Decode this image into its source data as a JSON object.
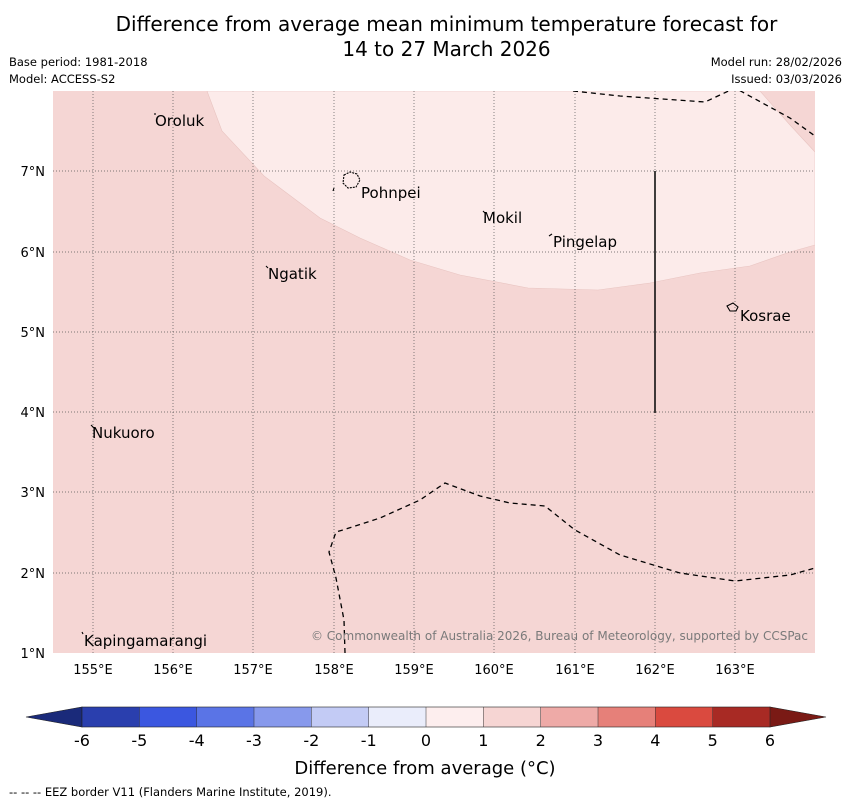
{
  "title": {
    "line1": "Difference from average mean minimum temperature forecast for",
    "line2": "14 to 27 March 2026"
  },
  "meta": {
    "base_period": "Base period: 1981-2018",
    "model": "Model: ACCESS-S2",
    "model_run": "Model run: 28/02/2026",
    "issued": "Issued: 03/03/2026"
  },
  "map": {
    "lon_range": [
      154.5,
      164.0
    ],
    "lat_range": [
      1.0,
      8.0
    ],
    "x_ticks": [
      "155°E",
      "156°E",
      "157°E",
      "158°E",
      "159°E",
      "160°E",
      "161°E",
      "162°E",
      "163°E"
    ],
    "y_ticks": [
      "7°N",
      "6°N",
      "5°N",
      "4°N",
      "3°N",
      "2°N",
      "1°N"
    ],
    "places": [
      {
        "name": "Oroluk",
        "lon": 155.75,
        "lat": 7.7
      },
      {
        "name": "Pohnpei",
        "lon": 158.3,
        "lat": 6.85
      },
      {
        "name": "Mokil",
        "lon": 159.8,
        "lat": 6.45
      },
      {
        "name": "Pingelap",
        "lon": 160.7,
        "lat": 6.2
      },
      {
        "name": "Ngatik",
        "lon": 157.15,
        "lat": 5.8
      },
      {
        "name": "Kosrae",
        "lon": 163.0,
        "lat": 5.3
      },
      {
        "name": "Nukuoro",
        "lon": 154.95,
        "lat": 3.85
      },
      {
        "name": "Kapingamarangi",
        "lon": 154.85,
        "lat": 1.25
      }
    ],
    "colors": {
      "anomaly_0_1": "#fcebea",
      "anomaly_1_2": "#f5d6d4"
    },
    "copyright": "© Commonwealth of Australia 2026, Bureau of Meteorology, supported by CCSPac"
  },
  "colorbar": {
    "ticks": [
      "-6",
      "-5",
      "-4",
      "-3",
      "-2",
      "-1",
      "0",
      "1",
      "2",
      "3",
      "4",
      "5",
      "6"
    ],
    "colors": [
      "#2a3fae",
      "#3b57e0",
      "#5a74e6",
      "#8799ec",
      "#c3cbf5",
      "#eaedfb",
      "#fdeeee",
      "#f6d5d3",
      "#eeaaa7",
      "#e68079",
      "#da4a3f",
      "#a82a24"
    ],
    "under_color": "#1a2a7a",
    "over_color": "#7a1a15",
    "title": "Difference from average (°C)"
  },
  "footnote": "--  --  -- EEZ border V11 (Flanders Marine Institute, 2019)."
}
